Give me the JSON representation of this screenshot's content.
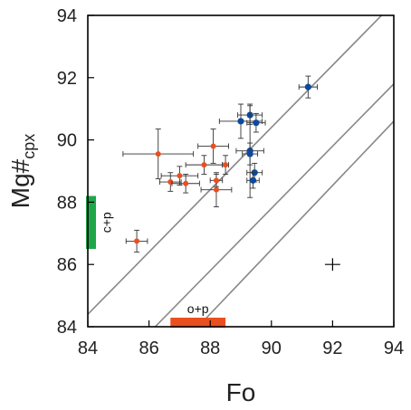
{
  "chart_data": {
    "type": "scatter",
    "title": "",
    "xlabel": "Fo",
    "ylabel_main": "Mg#",
    "ylabel_sub": "cpx",
    "xlim": [
      84,
      94
    ],
    "ylim": [
      84,
      94
    ],
    "x_ticks": [
      "84",
      "86",
      "88",
      "90",
      "92",
      "94"
    ],
    "y_ticks": [
      "84",
      "86",
      "88",
      "90",
      "92",
      "94"
    ],
    "grid": false,
    "colors": {
      "orange": "#e8501f",
      "blue": "#0d4a9e",
      "green": "#1fa64a",
      "line": "#888888"
    },
    "reference_lines": [
      {
        "x1": 84,
        "y1": 84.4,
        "x2": 94,
        "y2": 94.4
      },
      {
        "x1": 86.2,
        "y1": 84,
        "x2": 94,
        "y2": 91.8
      },
      {
        "x1": 87.6,
        "y1": 84,
        "x2": 94,
        "y2": 90.6
      }
    ],
    "orange_points": [
      {
        "x": 85.6,
        "y": 86.75,
        "xerr": 0.35,
        "yerr": 0.35
      },
      {
        "x": 86.3,
        "y": 89.55,
        "xerr": 1.15,
        "yerr": 0.8
      },
      {
        "x": 86.7,
        "y": 88.65,
        "xerr": 0.35,
        "yerr": 0.3
      },
      {
        "x": 87.0,
        "y": 88.85,
        "xerr": 0.6,
        "yerr": 0.3
      },
      {
        "x": 87.2,
        "y": 88.6,
        "xerr": 0.45,
        "yerr": 0.3
      },
      {
        "x": 87.8,
        "y": 89.2,
        "xerr": 0.6,
        "yerr": 0.3
      },
      {
        "x": 88.1,
        "y": 89.8,
        "xerr": 0.5,
        "yerr": 0.55
      },
      {
        "x": 88.2,
        "y": 88.4,
        "xerr": 0.5,
        "yerr": 0.55
      },
      {
        "x": 88.2,
        "y": 88.7,
        "xerr": 0.2,
        "yerr": 0.2
      },
      {
        "x": 88.5,
        "y": 89.2,
        "xerr": 0.1,
        "yerr": 0.3
      }
    ],
    "blue_points": [
      {
        "x": 89.0,
        "y": 90.6,
        "xerr": 0.7,
        "yerr": 0.55
      },
      {
        "x": 89.3,
        "y": 90.8,
        "xerr": 0.4,
        "yerr": 0.3
      },
      {
        "x": 89.5,
        "y": 90.55,
        "xerr": 0.3,
        "yerr": 0.3
      },
      {
        "x": 89.3,
        "y": 89.65,
        "xerr": 0.45,
        "yerr": 1.5
      },
      {
        "x": 89.3,
        "y": 89.55,
        "xerr": 0.25,
        "yerr": 0.35
      },
      {
        "x": 89.45,
        "y": 88.95,
        "xerr": 0.25,
        "yerr": 0.3
      },
      {
        "x": 89.4,
        "y": 88.7,
        "xerr": 0.2,
        "yerr": 0.25
      },
      {
        "x": 91.2,
        "y": 91.7,
        "xerr": 0.3,
        "yerr": 0.35
      }
    ],
    "range_bars": [
      {
        "label": "c+p",
        "axis": "y",
        "from": 86.5,
        "to": 88.2,
        "color": "#1fa64a"
      },
      {
        "label": "o+p",
        "axis": "x",
        "from": 86.7,
        "to": 88.5,
        "color": "#e8501f"
      }
    ],
    "typical_error_cross": {
      "x": 92.0,
      "y": 86.0,
      "xerr": 0.25,
      "yerr": 0.2
    }
  }
}
